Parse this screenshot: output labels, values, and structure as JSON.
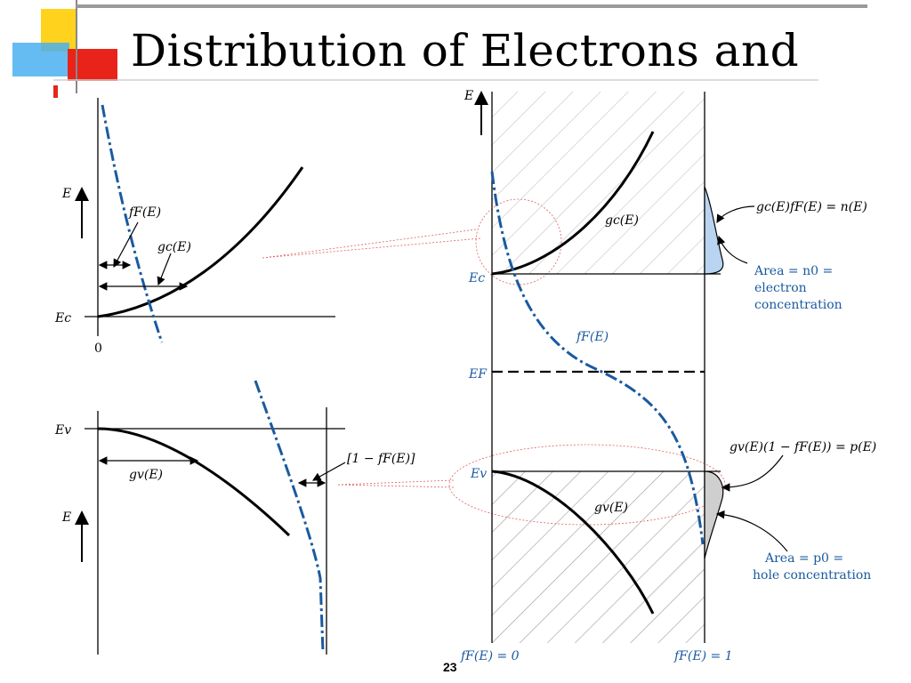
{
  "slide": {
    "title": "Distribution of Electrons and",
    "page_number": "23",
    "colors": {
      "accent_yellow": "#ffd21e",
      "accent_red": "#e8241a",
      "accent_blue": "#4ab0f0",
      "curve_blue": "#1a5aa0",
      "label_blue": "#1a5aa0"
    }
  },
  "left_upper": {
    "axis_label": "E",
    "ec_label": "Ec",
    "ff_label": "fF(E)",
    "gc_label": "gc(E)",
    "zero_label": "0"
  },
  "left_lower": {
    "ev_label": "Ev",
    "gv_label": "gv(E)",
    "one_minus_ff_label": "[1 − fF(E)]",
    "axis_label": "E"
  },
  "right": {
    "axis_label": "E",
    "ec_label": "Ec",
    "ef_label": "EF",
    "ev_label": "Ev",
    "gc_label": "gc(E)",
    "gv_label": "gv(E)",
    "ff_label": "fF(E)",
    "ne_label": "gc(E)fF(E) = n(E)",
    "n0_line1": "Area = n0 =",
    "n0_line2": "electron",
    "n0_line3": "concentration",
    "pe_label": "gv(E)(1 − fF(E)) = p(E)",
    "p0_line1": "Area = p0 =",
    "p0_line2": "hole concentration",
    "ff0_label": "fF(E) = 0",
    "ff1_label": "fF(E) = 1"
  }
}
